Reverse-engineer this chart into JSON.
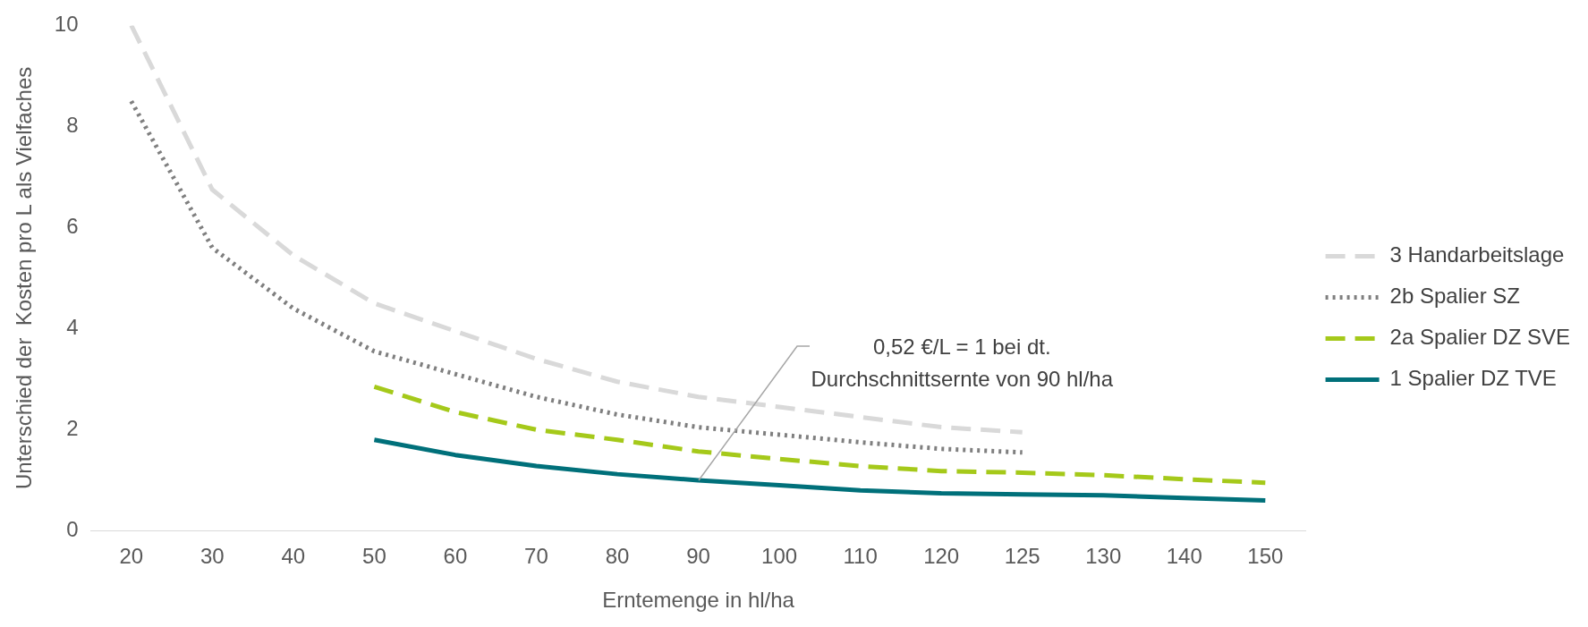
{
  "chart_data": {
    "type": "line",
    "xlabel": "Erntemenge in hl/ha",
    "ylabel": "Unterschied der  Kosten pro L als Vielfaches",
    "categories": [
      "20",
      "30",
      "40",
      "50",
      "60",
      "70",
      "80",
      "90",
      "100",
      "110",
      "120",
      "125",
      "130",
      "140",
      "150"
    ],
    "ylim": [
      0,
      10
    ],
    "yticks": [
      0,
      2,
      4,
      6,
      8,
      10
    ],
    "grid": false,
    "legend": "right",
    "marker": "none",
    "series": [
      {
        "name": "3 Handarbeitslage",
        "color": "#d9d9d9",
        "line_style": "dashed",
        "values": [
          10,
          6.75,
          5.45,
          4.5,
          3.95,
          3.4,
          2.95,
          2.65,
          2.45,
          2.25,
          2.05,
          1.95,
          null,
          null,
          null
        ]
      },
      {
        "name": "2b Spalier SZ",
        "color": "#7f7f7f",
        "line_style": "dotted",
        "values": [
          8.5,
          5.6,
          4.4,
          3.55,
          3.1,
          2.65,
          2.3,
          2.05,
          1.9,
          1.75,
          1.62,
          1.55,
          null,
          null,
          null
        ]
      },
      {
        "name": "2a Spalier DZ SVE",
        "color": "#a5c91a",
        "line_style": "dashed",
        "values": [
          null,
          null,
          null,
          2.85,
          2.35,
          2.0,
          1.8,
          1.57,
          1.42,
          1.28,
          1.18,
          1.15,
          1.1,
          1.02,
          0.95
        ]
      },
      {
        "name": "1 Spalier DZ TVE",
        "color": "#00707a",
        "line_style": "solid",
        "values": [
          null,
          null,
          null,
          1.8,
          1.5,
          1.28,
          1.12,
          1.0,
          0.9,
          0.8,
          0.74,
          0.72,
          0.7,
          0.65,
          0.6
        ]
      }
    ],
    "annotations": [
      {
        "text": "0,52 €/L = 1 bei dt. Durchschnittsernte von 90 hl/ha",
        "x": "90",
        "y": 1
      }
    ]
  }
}
